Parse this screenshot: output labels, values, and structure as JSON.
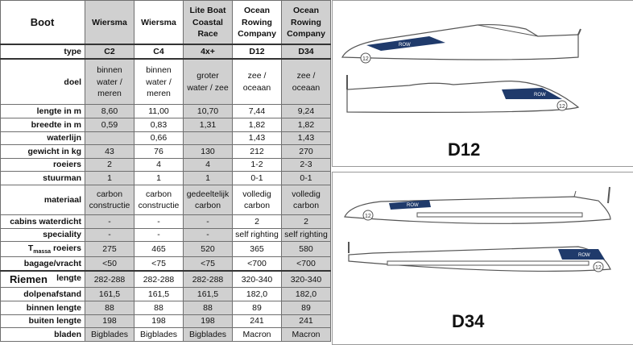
{
  "table": {
    "header_label": "Boot",
    "columns": [
      {
        "brand": [
          "Wiersma"
        ]
      },
      {
        "brand": [
          "Wiersma"
        ]
      },
      {
        "brand": [
          "Lite Boat",
          "Coastal",
          "Race"
        ]
      },
      {
        "brand": [
          "Ocean",
          "Rowing",
          "Company"
        ]
      },
      {
        "brand": [
          "Ocean",
          "Rowing",
          "Company"
        ]
      }
    ],
    "type_label": "type",
    "types": [
      "C2",
      "C4",
      "4x+",
      "D12",
      "D34"
    ],
    "rows": [
      {
        "label": "doel",
        "values": [
          [
            "binnen",
            "water /",
            "meren"
          ],
          [
            "binnen",
            "water /",
            "meren"
          ],
          [
            "groter",
            "water / zee"
          ],
          [
            "zee /",
            "oceaan"
          ],
          [
            "zee /",
            "oceaan"
          ]
        ]
      },
      {
        "label": "lengte in m",
        "values": [
          [
            "8,60"
          ],
          [
            "11,00"
          ],
          [
            "10,70"
          ],
          [
            "7,44"
          ],
          [
            "9,24"
          ]
        ]
      },
      {
        "label": "breedte in m",
        "values": [
          [
            "0,59"
          ],
          [
            "0,83"
          ],
          [
            "1,31"
          ],
          [
            "1,82"
          ],
          [
            "1,82"
          ]
        ]
      },
      {
        "label": "waterlijn",
        "values": [
          [
            ""
          ],
          [
            "0,66"
          ],
          [
            ""
          ],
          [
            "1,43"
          ],
          [
            "1,43"
          ]
        ]
      },
      {
        "label": "gewicht in kg",
        "values": [
          [
            "43"
          ],
          [
            "76"
          ],
          [
            "130"
          ],
          [
            "212"
          ],
          [
            "270"
          ]
        ]
      },
      {
        "label": "roeiers",
        "values": [
          [
            "2"
          ],
          [
            "4"
          ],
          [
            "4"
          ],
          [
            "1-2"
          ],
          [
            "2-3"
          ]
        ]
      },
      {
        "label": "stuurman",
        "values": [
          [
            "1"
          ],
          [
            "1"
          ],
          [
            "1"
          ],
          [
            "0-1"
          ],
          [
            "0-1"
          ]
        ]
      },
      {
        "label": "materiaal",
        "values": [
          [
            "carbon",
            "constructie"
          ],
          [
            "carbon",
            "constructie"
          ],
          [
            "gedeeltelijk",
            "carbon"
          ],
          [
            "volledig",
            "carbon"
          ],
          [
            "volledig",
            "carbon"
          ]
        ]
      },
      {
        "label": "cabins waterdicht",
        "values": [
          [
            "-"
          ],
          [
            "-"
          ],
          [
            "-"
          ],
          [
            "2"
          ],
          [
            "2"
          ]
        ]
      },
      {
        "label": "speciality",
        "values": [
          [
            "-"
          ],
          [
            "-"
          ],
          [
            "-"
          ],
          [
            "self righting"
          ],
          [
            "self righting"
          ]
        ]
      },
      {
        "label_main": "T",
        "label_sub": "massa",
        "label_rest": " roeiers",
        "values": [
          [
            "275"
          ],
          [
            "465"
          ],
          [
            "520"
          ],
          [
            "365"
          ],
          [
            "580"
          ]
        ]
      },
      {
        "label": "bagage/vracht",
        "values": [
          [
            "<50"
          ],
          [
            "<75"
          ],
          [
            "<75"
          ],
          [
            "<700"
          ],
          [
            "<700"
          ]
        ]
      }
    ],
    "riemen_title": "Riemen",
    "riemen_rows": [
      {
        "label": "lengte",
        "values": [
          "282-288",
          "282-288",
          "282-288",
          "320-340",
          "320-340"
        ]
      },
      {
        "label": "dolpenafstand",
        "values": [
          "161,5",
          "161,5",
          "161,5",
          "182,0",
          "182,0"
        ]
      },
      {
        "label": "binnen lengte",
        "values": [
          "88",
          "88",
          "88",
          "89",
          "89"
        ]
      },
      {
        "label": "buiten lengte",
        "values": [
          "198",
          "198",
          "198",
          "241",
          "241"
        ]
      },
      {
        "label": "bladen",
        "values": [
          "Bigblades",
          "Bigblades",
          "Bigblades",
          "Macron",
          "Macron"
        ]
      }
    ]
  },
  "images": [
    {
      "label": "D12",
      "hull_number": "12",
      "decal_text": "ROW"
    },
    {
      "label": "D34",
      "hull_number": "12",
      "decal_text": "ROW"
    }
  ],
  "colors": {
    "grey_column": "#d0d0d0",
    "decal_navy": "#1f3a6b",
    "hull_outline": "#555555"
  }
}
